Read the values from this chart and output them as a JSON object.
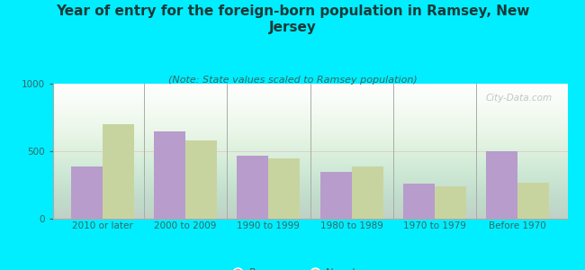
{
  "title": "Year of entry for the foreign-born population in Ramsey, New\nJersey",
  "subtitle": "(Note: State values scaled to Ramsey population)",
  "categories": [
    "2010 or later",
    "2000 to 2009",
    "1990 to 1999",
    "1980 to 1989",
    "1970 to 1979",
    "Before 1970"
  ],
  "ramsey_values": [
    390,
    650,
    470,
    350,
    260,
    500
  ],
  "nj_values": [
    700,
    580,
    450,
    390,
    240,
    270
  ],
  "ramsey_color": "#b89ccc",
  "nj_color": "#c8d4a0",
  "background_outer": "#00eeff",
  "background_chart_top": "#ffffff",
  "background_chart_bottom": "#d8ecd8",
  "ylim": [
    0,
    1000
  ],
  "yticks": [
    0,
    500,
    1000
  ],
  "bar_width": 0.38,
  "title_fontsize": 11,
  "subtitle_fontsize": 8,
  "tick_fontsize": 7.5,
  "legend_fontsize": 8.5,
  "title_color": "#1a3a3a",
  "subtitle_color": "#336666",
  "tick_color": "#336666",
  "watermark": "City-Data.com"
}
